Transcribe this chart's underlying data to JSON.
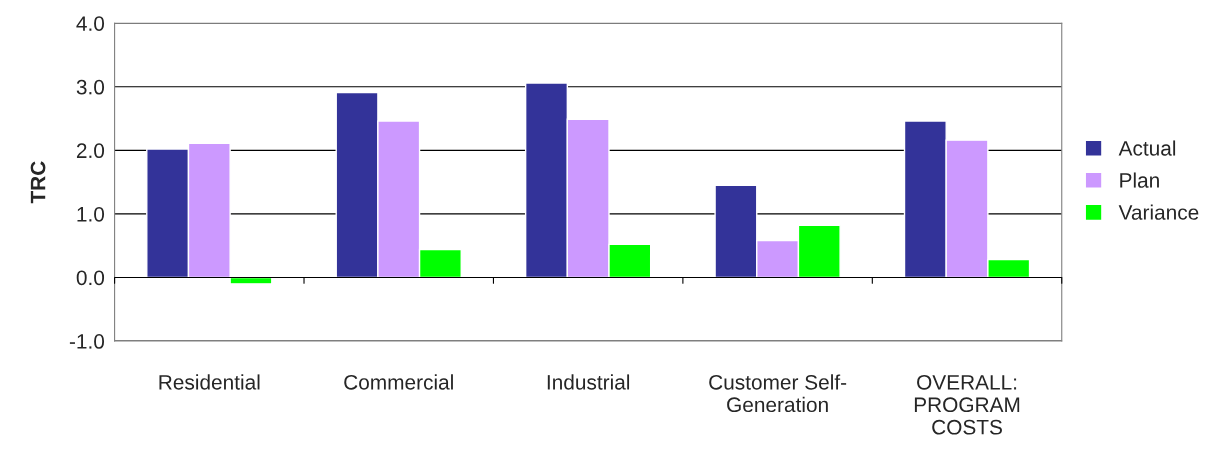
{
  "chart_data": {
    "type": "bar",
    "ylabel": "TRC",
    "categories": [
      "Residential",
      "Commercial",
      "Industrial",
      "Customer Self-\nGeneration",
      "OVERALL:\nPROGRAM\nCOSTS"
    ],
    "series": [
      {
        "name": "Actual",
        "color": "#333399",
        "values": [
          2.02,
          2.91,
          3.06,
          1.45,
          2.46
        ]
      },
      {
        "name": "Plan",
        "color": "#cc99ff",
        "values": [
          2.11,
          2.46,
          2.49,
          0.58,
          2.16
        ]
      },
      {
        "name": "Variance",
        "color": "#00ff00",
        "values": [
          -0.1,
          0.44,
          0.52,
          0.82,
          0.28
        ]
      }
    ],
    "ylim": [
      -1.0,
      4.0
    ],
    "yticks": [
      {
        "value": -1.0,
        "label": "-1.0"
      },
      {
        "value": 0.0,
        "label": "0.0"
      },
      {
        "value": 1.0,
        "label": "1.0"
      },
      {
        "value": 2.0,
        "label": "2.0"
      },
      {
        "value": 3.0,
        "label": "3.0"
      },
      {
        "value": 4.0,
        "label": "4.0"
      }
    ],
    "grid": "y",
    "legend": "right"
  }
}
